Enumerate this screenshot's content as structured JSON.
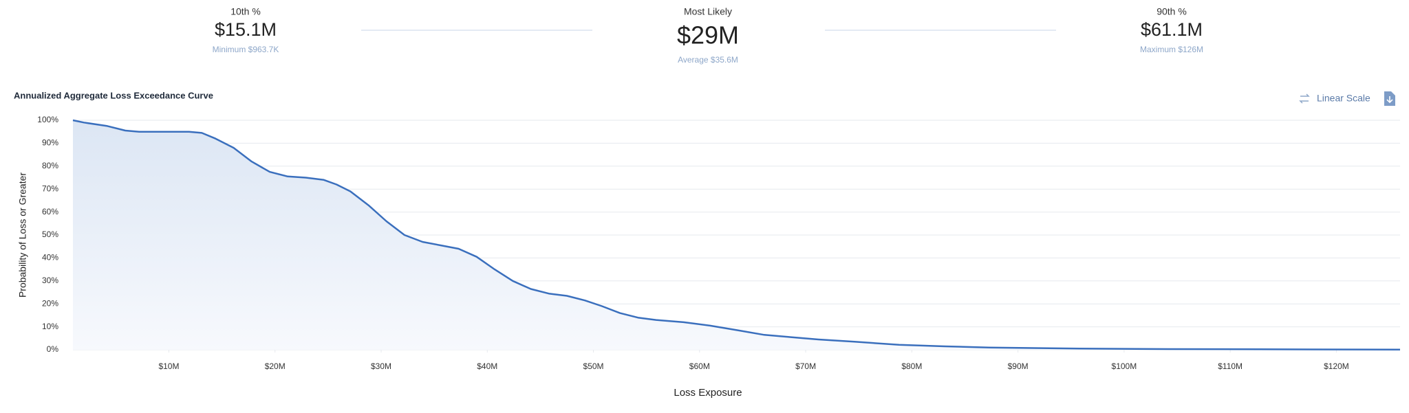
{
  "stats": [
    {
      "label": "10th %",
      "value": "$15.1M",
      "sub": "Minimum $963.7K"
    },
    {
      "label": "Most Likely",
      "value": "$29M",
      "sub": "Average $35.6M"
    },
    {
      "label": "90th %",
      "value": "$61.1M",
      "sub": "Maximum $126M"
    }
  ],
  "scale_button": "Linear Scale",
  "chart_data": {
    "type": "area",
    "title": "Annualized Aggregate Loss Exceedance Curve",
    "x_label": "Loss Exposure",
    "y_label": "Probability of Loss or Greater",
    "color": "#3a6fbd",
    "grid": true,
    "x": [
      0.96,
      2.0,
      4.2,
      5.9,
      7.2,
      9.3,
      11.9,
      13.1,
      14.4,
      16.1,
      17.8,
      19.5,
      21.2,
      22.9,
      24.6,
      25.8,
      27.1,
      28.8,
      30.5,
      32.2,
      33.9,
      35.6,
      37.3,
      39.0,
      40.7,
      42.4,
      44.1,
      45.8,
      47.5,
      49.2,
      50.8,
      52.5,
      54.2,
      55.9,
      58.5,
      61.0,
      63.6,
      66.1,
      68.6,
      71.2,
      74.6,
      78.8,
      83.1,
      87.3,
      95.8,
      104.2,
      112.7,
      126
    ],
    "values": [
      100,
      99,
      97.5,
      95.5,
      95,
      95,
      95,
      94.5,
      92,
      88,
      82,
      77.5,
      75.5,
      75,
      74,
      72,
      69,
      63,
      56,
      50,
      47,
      45.5,
      44,
      40.5,
      35,
      30,
      26.5,
      24.5,
      23.5,
      21.5,
      19,
      16,
      14,
      13,
      12,
      10.5,
      8.5,
      6.5,
      5.5,
      4.5,
      3.5,
      2.2,
      1.5,
      1,
      0.5,
      0.3,
      0.2,
      0.1
    ],
    "xlim": [
      0.96,
      126
    ],
    "ylim": [
      0,
      100
    ],
    "xticks": [
      {
        "value": 10,
        "label": "$10M"
      },
      {
        "value": 20,
        "label": "$20M"
      },
      {
        "value": 30,
        "label": "$30M"
      },
      {
        "value": 40,
        "label": "$40M"
      },
      {
        "value": 50,
        "label": "$50M"
      },
      {
        "value": 60,
        "label": "$60M"
      },
      {
        "value": 70,
        "label": "$70M"
      },
      {
        "value": 80,
        "label": "$80M"
      },
      {
        "value": 90,
        "label": "$90M"
      },
      {
        "value": 100,
        "label": "$100M"
      },
      {
        "value": 110,
        "label": "$110M"
      },
      {
        "value": 120,
        "label": "$120M"
      }
    ],
    "yticks": [
      {
        "value": 0,
        "label": "0%"
      },
      {
        "value": 10,
        "label": "10%"
      },
      {
        "value": 20,
        "label": "20%"
      },
      {
        "value": 30,
        "label": "30%"
      },
      {
        "value": 40,
        "label": "40%"
      },
      {
        "value": 50,
        "label": "50%"
      },
      {
        "value": 60,
        "label": "60%"
      },
      {
        "value": 70,
        "label": "70%"
      },
      {
        "value": 80,
        "label": "80%"
      },
      {
        "value": 90,
        "label": "90%"
      },
      {
        "value": 100,
        "label": "100%"
      }
    ]
  }
}
